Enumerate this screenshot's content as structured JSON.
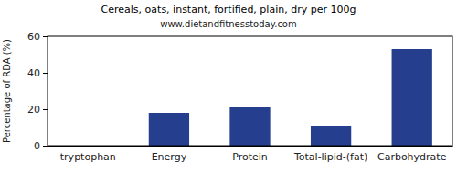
{
  "chart_data": {
    "type": "bar",
    "title": "Cereals, oats, instant, fortified, plain, dry per 100g",
    "subtitle": "www.dietandfitnesstoday.com",
    "y_label": "Percentage of RDA (%)",
    "categories": [
      "tryptophan",
      "Energy",
      "Protein",
      "Total-lipid-(fat)",
      "Carbohydrate"
    ],
    "values": [
      0,
      18,
      21,
      11,
      53
    ],
    "color": "#253f8e",
    "ylim": [
      0,
      60
    ],
    "yticks": [
      0,
      20,
      40,
      60
    ],
    "grid": false
  }
}
